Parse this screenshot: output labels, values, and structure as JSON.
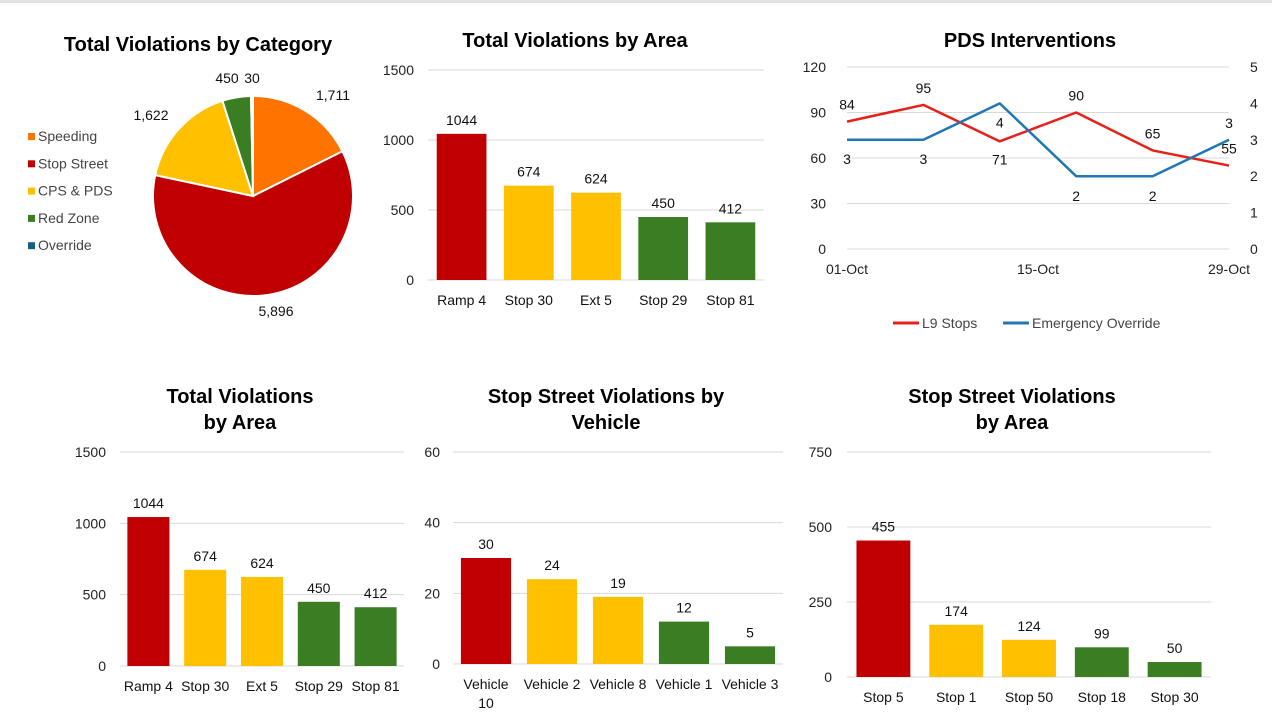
{
  "colors": {
    "red": "#C00000",
    "yellow": "#FFC000",
    "green": "#3A7D22",
    "orange": "#FF7300",
    "blue": "#156082",
    "line_red": "#E8201A",
    "line_blue": "#1F77B4",
    "grid": "#D9D9D9"
  },
  "chart_data": [
    {
      "type": "pie",
      "title": "Total Violations by Category",
      "categories": [
        "Speeding",
        "Stop Street",
        "CPS & PDS",
        "Red Zone",
        "Override"
      ],
      "values": [
        1711,
        5896,
        1622,
        450,
        30
      ],
      "value_labels": [
        "1,711",
        "5,896",
        "1,622",
        "450",
        "30"
      ],
      "colors": [
        "#FF7300",
        "#C00000",
        "#FFC000",
        "#3A7D22",
        "#156082"
      ],
      "legend": "left"
    },
    {
      "type": "bar",
      "title": "Total Violations by Area",
      "categories": [
        "Ramp 4",
        "Stop 30",
        "Ext 5",
        "Stop 29",
        "Stop 81"
      ],
      "values": [
        1044,
        674,
        624,
        450,
        412
      ],
      "colors": [
        "#C00000",
        "#FFC000",
        "#FFC000",
        "#3A7D22",
        "#3A7D22"
      ],
      "yticks": [
        "1500",
        "1000",
        "500",
        "0"
      ],
      "ylim": [
        0,
        1500
      ],
      "grid": true
    },
    {
      "type": "line",
      "title": "PDS Interventions",
      "x_ticks": [
        "01-Oct",
        "15-Oct",
        "29-Oct"
      ],
      "y_ticks_left": [
        "120",
        "90",
        "60",
        "30",
        "0"
      ],
      "y_ticks_right": [
        "5",
        "4",
        "3",
        "2",
        "1",
        "0"
      ],
      "ylim_left": [
        0,
        120
      ],
      "ylim_right": [
        0,
        5
      ],
      "series": [
        {
          "name": "L9 Stops",
          "axis": "left",
          "values": [
            84,
            95,
            71,
            90,
            65,
            55
          ],
          "labels": [
            "84",
            "95",
            "71",
            "90",
            "65",
            "55"
          ],
          "color": "#E8201A"
        },
        {
          "name": "Emergency Override",
          "axis": "right",
          "values": [
            3,
            3,
            4,
            2,
            2,
            3
          ],
          "labels": [
            "3",
            "3",
            "4",
            "2",
            "2",
            "3"
          ],
          "color": "#1F77B4"
        }
      ],
      "legend": "bottom",
      "grid": true
    },
    {
      "type": "bar",
      "title": "Total Violations by Area",
      "title_lines": [
        "Total Violations",
        "by Area"
      ],
      "categories": [
        "Ramp 4",
        "Stop 30",
        "Ext 5",
        "Stop 29",
        "Stop 81"
      ],
      "values": [
        1044,
        674,
        624,
        450,
        412
      ],
      "colors": [
        "#C00000",
        "#FFC000",
        "#FFC000",
        "#3A7D22",
        "#3A7D22"
      ],
      "yticks": [
        "1500",
        "1000",
        "500",
        "0"
      ],
      "ylim": [
        0,
        1500
      ],
      "grid": true
    },
    {
      "type": "bar",
      "title": "Stop Street Violations by Vehicle",
      "title_lines": [
        "Stop Street Violations by",
        "Vehicle"
      ],
      "categories": [
        "Vehicle 10",
        "Vehicle 2",
        "Vehicle 8",
        "Vehicle 1",
        "Vehicle 3"
      ],
      "values": [
        30,
        24,
        19,
        12,
        5
      ],
      "colors": [
        "#C00000",
        "#FFC000",
        "#FFC000",
        "#3A7D22",
        "#3A7D22"
      ],
      "yticks": [
        "60",
        "40",
        "20",
        "0"
      ],
      "ylim": [
        0,
        60
      ],
      "grid": true
    },
    {
      "type": "bar",
      "title": "Stop Street Violations by Area",
      "title_lines": [
        "Stop Street Violations",
        "by Area"
      ],
      "categories": [
        "Stop 5",
        "Stop 1",
        "Stop 50",
        "Stop 18",
        "Stop 30"
      ],
      "values": [
        455,
        174,
        124,
        99,
        50
      ],
      "colors": [
        "#C00000",
        "#FFC000",
        "#FFC000",
        "#3A7D22",
        "#3A7D22"
      ],
      "yticks": [
        "750",
        "500",
        "250",
        "0"
      ],
      "ylim": [
        0,
        750
      ],
      "grid": true
    }
  ]
}
